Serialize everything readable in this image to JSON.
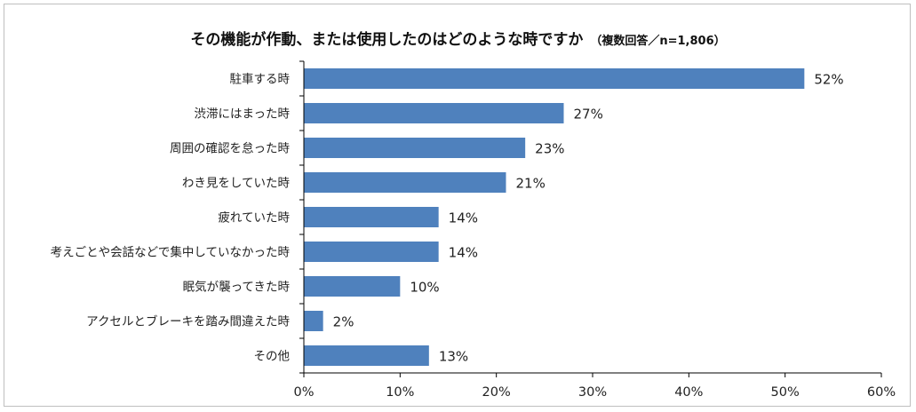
{
  "chart_data": {
    "type": "bar",
    "orientation": "horizontal",
    "title": "その機能が作動、または使用したのはどのような時ですか",
    "subtitle": "（複数回答／n=1,806）",
    "categories": [
      "駐車する時",
      "渋滞にはまった時",
      "周囲の確認を怠った時",
      "わき見をしていた時",
      "疲れていた時",
      "考えごとや会話などで集中していなかった時",
      "眠気が襲ってきた時",
      "アクセルとブレーキを踏み間違えた時",
      "その他"
    ],
    "values": [
      52,
      27,
      23,
      21,
      14,
      14,
      10,
      2,
      13
    ],
    "value_labels": [
      "52%",
      "27%",
      "23%",
      "21%",
      "14%",
      "14%",
      "10%",
      "2%",
      "13%"
    ],
    "xlim": [
      0,
      60
    ],
    "xticks": [
      0,
      10,
      20,
      30,
      40,
      50,
      60
    ],
    "xtick_labels": [
      "0%",
      "10%",
      "20%",
      "30%",
      "40%",
      "50%",
      "60%"
    ],
    "bar_color": "#4f81bd",
    "grid": false,
    "legend": "none"
  }
}
